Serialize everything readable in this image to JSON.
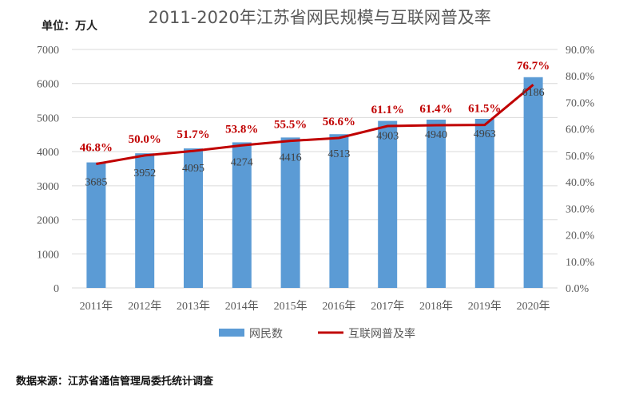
{
  "chart_data": {
    "type": "bar+line",
    "title": "2011-2020年江苏省网民规模与互联网普及率",
    "unit_label": "单位：万人",
    "categories": [
      "2011年",
      "2012年",
      "2013年",
      "2014年",
      "2015年",
      "2016年",
      "2017年",
      "2018年",
      "2019年",
      "2020年"
    ],
    "series": [
      {
        "name": "网民数",
        "type": "bar",
        "axis": "left",
        "color": "#5b9bd5",
        "values": [
          3685,
          3952,
          4095,
          4274,
          4416,
          4513,
          4903,
          4940,
          4963,
          6186
        ]
      },
      {
        "name": "互联网普及率",
        "type": "line",
        "axis": "right",
        "color": "#c00000",
        "values": [
          46.8,
          50.0,
          51.7,
          53.8,
          55.5,
          56.6,
          61.1,
          61.4,
          61.5,
          76.7
        ]
      }
    ],
    "left_axis": {
      "ylim": [
        0,
        7000
      ],
      "ticks": [
        "0",
        "1000",
        "2000",
        "3000",
        "4000",
        "5000",
        "6000",
        "7000"
      ]
    },
    "right_axis": {
      "ylim": [
        0,
        90
      ],
      "ticks": [
        "0.0%",
        "10.0%",
        "20.0%",
        "30.0%",
        "40.0%",
        "50.0%",
        "60.0%",
        "70.0%",
        "80.0%",
        "90.0%"
      ]
    },
    "grid": true,
    "legend": "bottom"
  },
  "source": "数据来源：江苏省通信管理局委托统计调查"
}
